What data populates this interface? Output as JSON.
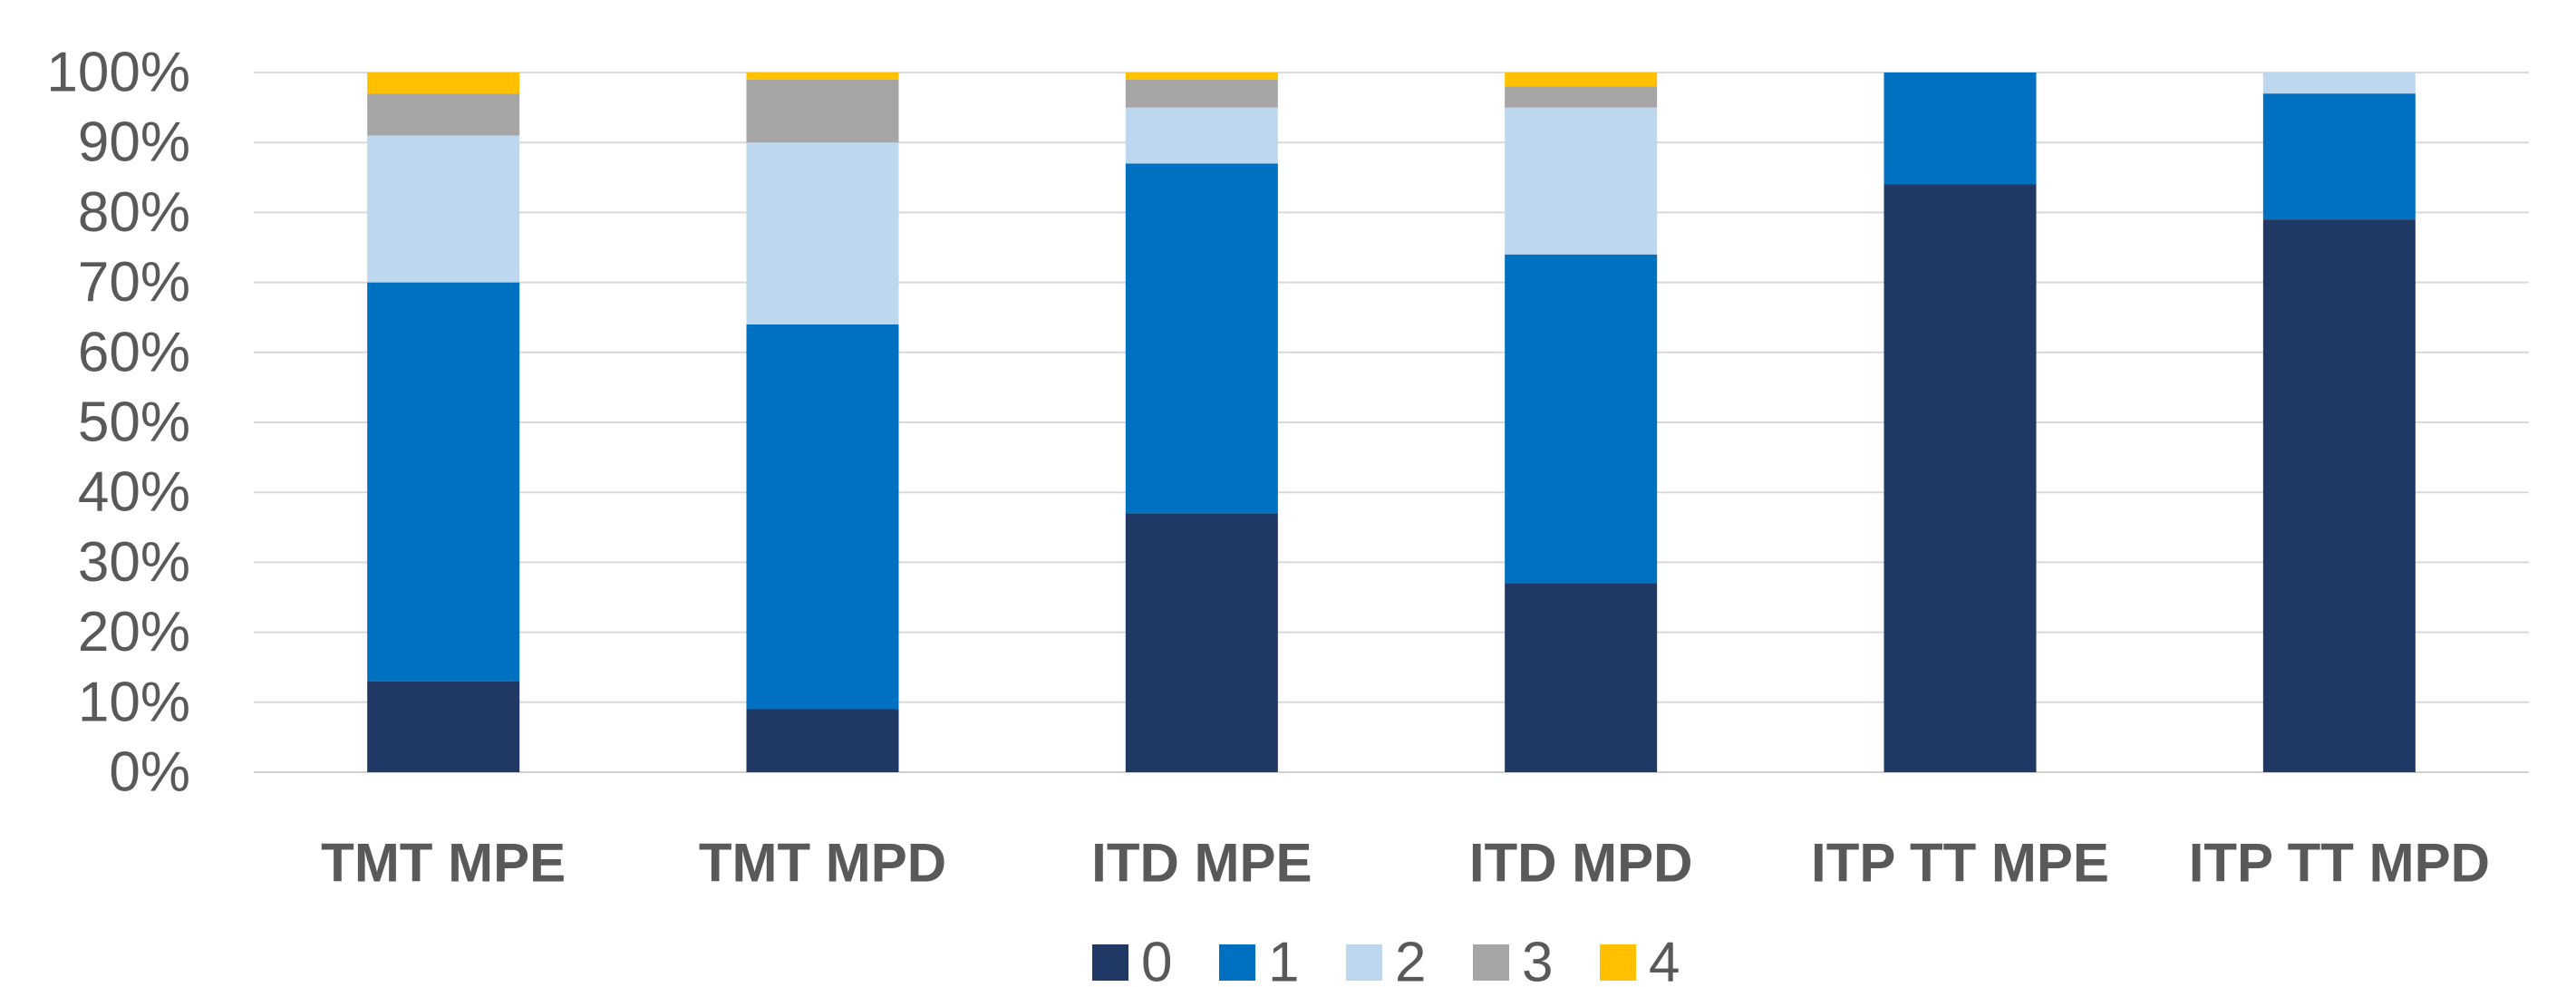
{
  "chart_data": {
    "type": "bar",
    "stacked": true,
    "categories": [
      "TMT MPE",
      "TMT MPD",
      "ITD MPE",
      "ITD MPD",
      "ITP TT MPE",
      "ITP TT MPD"
    ],
    "series": [
      {
        "name": "0",
        "color": "#1F3864",
        "values": [
          13,
          9,
          37,
          27,
          84,
          79
        ]
      },
      {
        "name": "1",
        "color": "#0070C0",
        "values": [
          57,
          55,
          50,
          47,
          16,
          18
        ]
      },
      {
        "name": "2",
        "color": "#BDD7EE",
        "values": [
          21,
          26,
          8,
          21,
          0,
          3
        ]
      },
      {
        "name": "3",
        "color": "#A5A5A5",
        "values": [
          6,
          9,
          4,
          3,
          0,
          0
        ]
      },
      {
        "name": "4",
        "color": "#FFC000",
        "values": [
          3,
          1,
          1,
          2,
          0,
          0
        ]
      }
    ],
    "ylim": [
      0,
      100
    ],
    "yticks": [
      "0%",
      "10%",
      "20%",
      "30%",
      "40%",
      "50%",
      "60%",
      "70%",
      "80%",
      "90%",
      "100%"
    ],
    "grid": true,
    "legend": "bottom-center",
    "title": "",
    "xlabel": "",
    "ylabel": ""
  }
}
